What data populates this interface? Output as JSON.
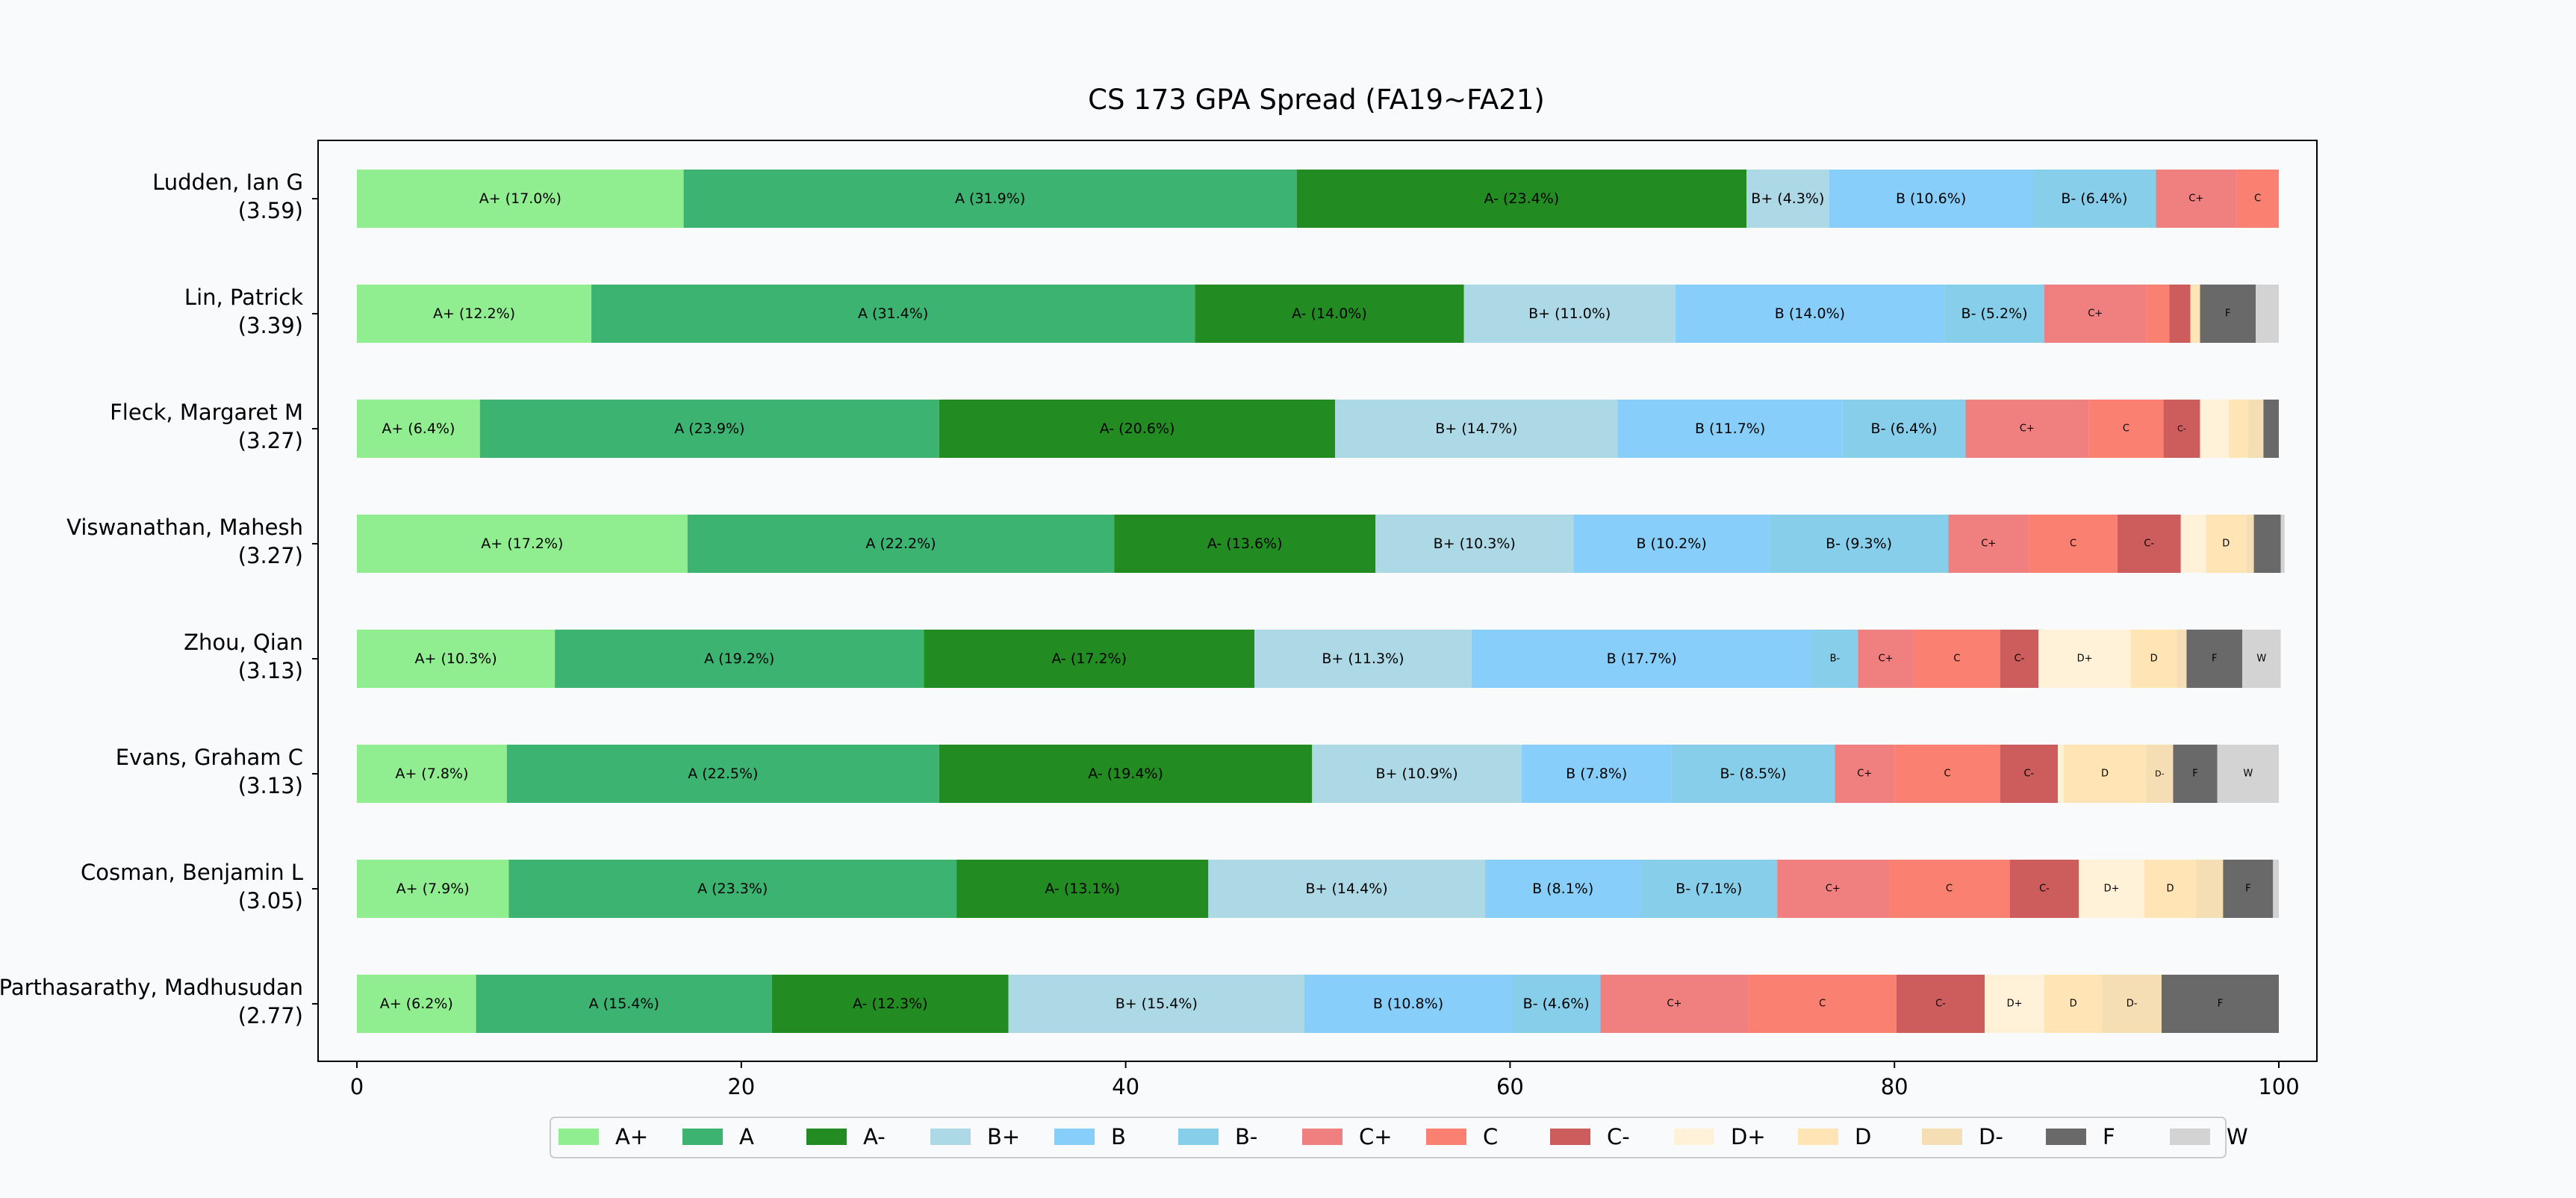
{
  "chart_data": {
    "type": "bar",
    "orientation": "horizontal",
    "stacked": true,
    "title": "CS 173 GPA Spread (FA19~FA21)",
    "xlabel": "",
    "ylabel": "",
    "xlim": [
      0,
      100
    ],
    "x_ticks": [
      "0",
      "20",
      "40",
      "60",
      "80",
      "100"
    ],
    "grid": false,
    "legend": "bottom-center",
    "categories": [
      {
        "name": "Ludden, Ian G",
        "gpa": "(3.59)"
      },
      {
        "name": "Lin, Patrick",
        "gpa": "(3.39)"
      },
      {
        "name": "Fleck, Margaret M",
        "gpa": "(3.27)"
      },
      {
        "name": "Viswanathan, Mahesh",
        "gpa": "(3.27)"
      },
      {
        "name": "Zhou, Qian",
        "gpa": "(3.13)"
      },
      {
        "name": "Evans, Graham C",
        "gpa": "(3.13)"
      },
      {
        "name": "Cosman, Benjamin L",
        "gpa": "(3.05)"
      },
      {
        "name": "Parthasarathy, Madhusudan",
        "gpa": "(2.77)"
      }
    ],
    "series": [
      {
        "name": "A+",
        "color": "#90ee90",
        "values": [
          17.0,
          12.2,
          6.4,
          17.2,
          10.3,
          7.8,
          7.9,
          6.2
        ],
        "labels": [
          "A+ (17.0%)",
          "A+ (12.2%)",
          "A+ (6.4%)",
          "A+ (17.2%)",
          "A+ (10.3%)",
          "A+ (7.8%)",
          "A+ (7.9%)",
          "A+ (6.2%)"
        ]
      },
      {
        "name": "A",
        "color": "#3cb371",
        "values": [
          31.9,
          31.4,
          23.9,
          22.2,
          19.2,
          22.5,
          23.3,
          15.4
        ],
        "labels": [
          "A (31.9%)",
          "A (31.4%)",
          "A (23.9%)",
          "A (22.2%)",
          "A (19.2%)",
          "A (22.5%)",
          "A (23.3%)",
          "A (15.4%)"
        ]
      },
      {
        "name": "A-",
        "color": "#228b22",
        "values": [
          23.4,
          14.0,
          20.6,
          13.6,
          17.2,
          19.4,
          13.1,
          12.3
        ],
        "labels": [
          "A- (23.4%)",
          "A- (14.0%)",
          "A- (20.6%)",
          "A- (13.6%)",
          "A- (17.2%)",
          "A- (19.4%)",
          "A- (13.1%)",
          "A- (12.3%)"
        ]
      },
      {
        "name": "B+",
        "color": "#add8e6",
        "values": [
          4.3,
          11.0,
          14.7,
          10.3,
          11.3,
          10.9,
          14.4,
          15.4
        ],
        "labels": [
          "B+ (4.3%)",
          "B+ (11.0%)",
          "B+ (14.7%)",
          "B+ (10.3%)",
          "B+ (11.3%)",
          "B+ (10.9%)",
          "B+ (14.4%)",
          "B+ (15.4%)"
        ]
      },
      {
        "name": "B",
        "color": "#87cefa",
        "values": [
          10.6,
          14.0,
          11.7,
          10.2,
          17.7,
          7.8,
          8.1,
          10.8
        ],
        "labels": [
          "B (10.6%)",
          "B (14.0%)",
          "B (11.7%)",
          "B (10.2%)",
          "B (17.7%)",
          "B (7.8%)",
          "B (8.1%)",
          "B (10.8%)"
        ]
      },
      {
        "name": "B-",
        "color": "#87ceeb",
        "values": [
          6.4,
          5.2,
          6.4,
          9.3,
          2.4,
          8.5,
          7.1,
          4.6
        ],
        "labels": [
          "B- (6.4%)",
          "B- (5.2%)",
          "B- (6.4%)",
          "B- (9.3%)",
          "B-",
          "B- (8.5%)",
          "B- (7.1%)",
          "B- (4.6%)"
        ]
      },
      {
        "name": "C+",
        "color": "#f08080",
        "values": [
          4.2,
          5.3,
          6.4,
          4.2,
          2.9,
          3.1,
          5.8,
          7.7
        ],
        "labels": [
          "C+",
          "C+",
          "C+",
          "C+",
          "C+",
          "C+",
          "C+",
          "C+"
        ]
      },
      {
        "name": "C",
        "color": "#fa8072",
        "values": [
          2.2,
          1.2,
          3.9,
          4.6,
          4.5,
          5.5,
          6.3,
          7.7
        ],
        "labels": [
          "C",
          "",
          "C",
          "C",
          "C",
          "C",
          "C",
          "C"
        ]
      },
      {
        "name": "C-",
        "color": "#cd5c5c",
        "values": [
          0,
          1.1,
          1.9,
          3.3,
          2.0,
          3.0,
          3.6,
          4.6
        ],
        "labels": [
          "",
          "",
          "C-",
          "C-",
          "C-",
          "C-",
          "C-",
          "C-"
        ]
      },
      {
        "name": "D+",
        "color": "#fff2d9",
        "values": [
          0,
          0,
          1.5,
          1.3,
          4.8,
          0.3,
          3.4,
          3.1
        ],
        "labels": [
          "",
          "",
          "",
          "",
          "D+",
          "",
          "D+",
          "D+"
        ]
      },
      {
        "name": "D",
        "color": "#ffe4b5",
        "values": [
          0,
          0.5,
          1.0,
          2.1,
          2.4,
          4.3,
          2.7,
          3.0
        ],
        "labels": [
          "",
          "",
          "",
          "D",
          "D",
          "D",
          "D",
          "D"
        ]
      },
      {
        "name": "D-",
        "color": "#f5deb3",
        "values": [
          0,
          0,
          0.8,
          0.4,
          0.5,
          1.4,
          1.4,
          3.1
        ],
        "labels": [
          "",
          "",
          "",
          "",
          "",
          "D-",
          "",
          "D-"
        ]
      },
      {
        "name": "F",
        "color": "#696969",
        "values": [
          0,
          2.9,
          0.8,
          1.4,
          2.9,
          2.3,
          2.6,
          6.1
        ],
        "labels": [
          "",
          "F",
          "",
          "",
          "F",
          "F",
          "F",
          "F"
        ]
      },
      {
        "name": "W",
        "color": "#d3d3d3",
        "values": [
          0,
          1.2,
          0,
          0.2,
          2.0,
          3.2,
          0.3,
          0
        ],
        "labels": [
          "",
          "",
          "",
          "",
          "W",
          "W",
          "",
          ""
        ]
      }
    ]
  }
}
